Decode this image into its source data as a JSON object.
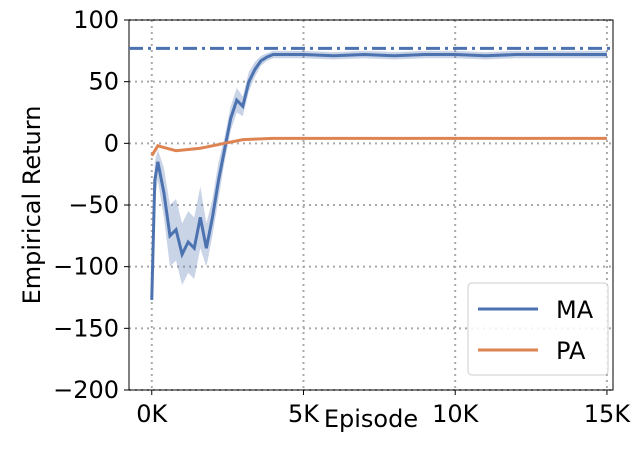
{
  "chart_data": {
    "type": "line",
    "xlabel": "Episode",
    "ylabel": "Empirical Return",
    "xlim": [
      -750,
      15200
    ],
    "ylim": [
      -200,
      100
    ],
    "xticks": [
      {
        "value": 0,
        "label": "0K"
      },
      {
        "value": 5000,
        "label": "5K"
      },
      {
        "value": 10000,
        "label": "10K"
      },
      {
        "value": 15000,
        "label": "15K"
      }
    ],
    "yticks": [
      {
        "value": -200,
        "label": "−200"
      },
      {
        "value": -150,
        "label": "−150"
      },
      {
        "value": -100,
        "label": "−100"
      },
      {
        "value": -50,
        "label": "−50"
      },
      0,
      50,
      100
    ],
    "grid": true,
    "legend": "lower right",
    "reference_line": 77,
    "reference_color": "#4c72b0",
    "series": [
      {
        "name": "MA",
        "color": "#4c72b0",
        "x": [
          0,
          100,
          200,
          400,
          600,
          800,
          1000,
          1200,
          1400,
          1600,
          1800,
          2000,
          2200,
          2400,
          2600,
          2800,
          3000,
          3200,
          3400,
          3600,
          3800,
          4000,
          5000,
          6000,
          7000,
          8000,
          9000,
          10000,
          11000,
          12000,
          13000,
          14000,
          15000
        ],
        "values": [
          -127,
          -30,
          -15,
          -40,
          -75,
          -70,
          -90,
          -80,
          -85,
          -60,
          -85,
          -60,
          -30,
          -5,
          20,
          35,
          30,
          50,
          60,
          67,
          70,
          72,
          72,
          71,
          72,
          71,
          72,
          72,
          71,
          72,
          72,
          72,
          72
        ],
        "lower": [
          -130,
          -45,
          -30,
          -60,
          -100,
          -95,
          -115,
          -105,
          -110,
          -85,
          -100,
          -75,
          -45,
          -15,
          10,
          25,
          22,
          42,
          54,
          63,
          67,
          69,
          69,
          68,
          69,
          68,
          69,
          69,
          68,
          69,
          69,
          69,
          69
        ],
        "upper": [
          -120,
          -15,
          -5,
          -20,
          -50,
          -45,
          -65,
          -55,
          -60,
          -35,
          -65,
          -45,
          -15,
          5,
          30,
          45,
          38,
          58,
          66,
          71,
          73,
          75,
          75,
          74,
          75,
          74,
          75,
          75,
          74,
          75,
          75,
          75,
          75
        ]
      },
      {
        "name": "PA",
        "color": "#dd8452",
        "x": [
          0,
          200,
          500,
          800,
          1200,
          1600,
          2000,
          2400,
          2800,
          3000,
          4000,
          6000,
          8000,
          10000,
          12000,
          14000,
          15000
        ],
        "values": [
          -10,
          -2,
          -4,
          -6,
          -5,
          -4,
          -2,
          0,
          2,
          3,
          4,
          4,
          4,
          4,
          4,
          4,
          4
        ]
      }
    ]
  }
}
